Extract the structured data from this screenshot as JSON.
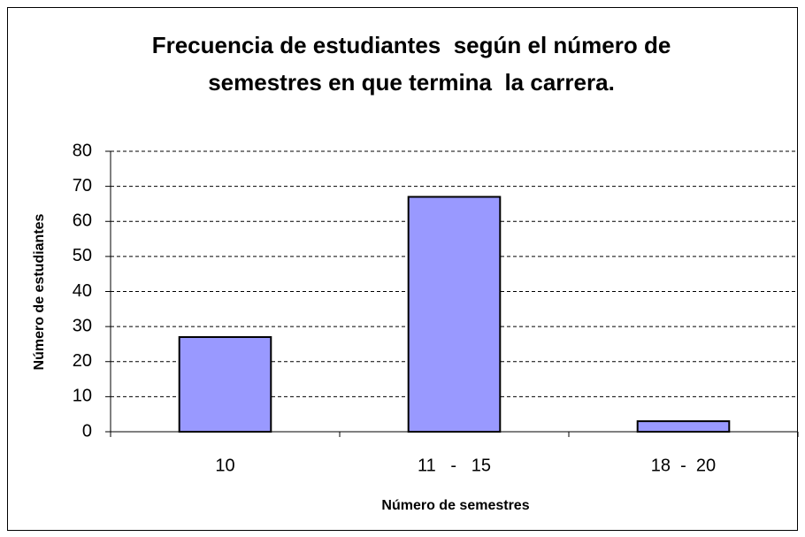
{
  "chart_data": {
    "type": "bar",
    "title": "Frecuencia de estudiantes  según el número de semestres en que termina  la carrera.",
    "xlabel": "Número de semestres",
    "ylabel": "Número de estudiantes",
    "categories": [
      "10",
      "11   -   15",
      "18  -  20"
    ],
    "values": [
      27,
      67,
      3
    ],
    "color": "#9999ff",
    "ylim": [
      0,
      80
    ],
    "yticks": [
      0,
      10,
      20,
      30,
      40,
      50,
      60,
      70,
      80
    ],
    "grid": true
  }
}
